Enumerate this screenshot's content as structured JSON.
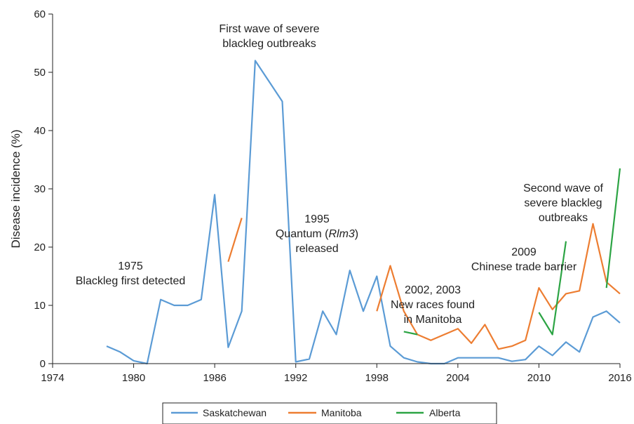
{
  "chart_data": {
    "type": "line",
    "xlabel": "",
    "ylabel": "Disease incidence (%)",
    "xlim": [
      1974,
      2016
    ],
    "ylim": [
      0,
      60
    ],
    "xticks": [
      "1974",
      "1980",
      "1986",
      "1992",
      "1998",
      "2004",
      "2010",
      "2016"
    ],
    "yticks": [
      "0",
      "10",
      "20",
      "30",
      "40",
      "50",
      "60"
    ],
    "grid": false,
    "legend_position": "bottom",
    "series": [
      {
        "name": "Saskatchewan",
        "color": "#5b9bd5",
        "segments": [
          [
            [
              1978,
              3
            ],
            [
              1979,
              2
            ],
            [
              1980,
              0.5
            ],
            [
              1981,
              0
            ],
            [
              1982,
              11
            ],
            [
              1983,
              10
            ],
            [
              1984,
              10
            ],
            [
              1985,
              11
            ],
            [
              1986,
              29
            ],
            [
              1987,
              2.8
            ],
            [
              1988,
              9
            ],
            [
              1989,
              52
            ],
            [
              1990,
              48.5
            ],
            [
              1991,
              45
            ],
            [
              1992,
              0.3
            ],
            [
              1993,
              0.8
            ],
            [
              1994,
              9
            ],
            [
              1995,
              5
            ],
            [
              1996,
              16
            ],
            [
              1997,
              9
            ],
            [
              1998,
              15
            ],
            [
              1999,
              3
            ],
            [
              2000,
              1
            ],
            [
              2001,
              0.3
            ],
            [
              2002,
              0
            ],
            [
              2003,
              0
            ],
            [
              2004,
              1
            ],
            [
              2005,
              1
            ],
            [
              2006,
              1
            ],
            [
              2007,
              1
            ],
            [
              2008,
              0.4
            ],
            [
              2009,
              0.7
            ],
            [
              2010,
              3
            ],
            [
              2011,
              1.4
            ],
            [
              2012,
              3.7
            ],
            [
              2013,
              2
            ],
            [
              2014,
              8
            ],
            [
              2015,
              9
            ],
            [
              2016,
              7
            ]
          ]
        ]
      },
      {
        "name": "Manitoba",
        "color": "#ed7d31",
        "segments": [
          [
            [
              1987,
              17.5
            ],
            [
              1988,
              25
            ]
          ],
          [
            [
              1998,
              9
            ],
            [
              1999,
              16.8
            ],
            [
              2000,
              9
            ],
            [
              2001,
              5
            ],
            [
              2002,
              4
            ],
            [
              2003,
              5
            ],
            [
              2004,
              6
            ],
            [
              2005,
              3.5
            ],
            [
              2006,
              6.7
            ],
            [
              2007,
              2.5
            ],
            [
              2008,
              3
            ],
            [
              2009,
              4
            ],
            [
              2010,
              13
            ],
            [
              2011,
              9.3
            ],
            [
              2012,
              12
            ],
            [
              2013,
              12.5
            ],
            [
              2014,
              24
            ],
            [
              2015,
              14
            ],
            [
              2016,
              12
            ]
          ]
        ]
      },
      {
        "name": "Alberta",
        "color": "#2ca444",
        "segments": [
          [
            [
              2000,
              5.5
            ],
            [
              2001,
              5
            ]
          ],
          [
            [
              2010,
              8.8
            ],
            [
              2011,
              5
            ],
            [
              2012,
              21
            ]
          ],
          [
            [
              2015,
              13
            ],
            [
              2016,
              33.5
            ]
          ]
        ]
      }
    ],
    "annotations": [
      {
        "id": "a1975",
        "lines": [
          "1975",
          "Blackleg first detected"
        ]
      },
      {
        "id": "afirst",
        "lines": [
          "First wave of severe",
          "blackleg outbreaks"
        ]
      },
      {
        "id": "a1995",
        "lines": [
          "1995",
          "Quantum (Rlm3)",
          "released"
        ]
      },
      {
        "id": "a2002",
        "lines": [
          "2002, 2003",
          "New races found",
          "in Manitoba"
        ]
      },
      {
        "id": "a2009",
        "lines": [
          "2009",
          "Chinese trade barrier"
        ]
      },
      {
        "id": "asecond",
        "lines": [
          "Second wave of",
          "severe blackleg",
          "outbreaks"
        ]
      }
    ]
  }
}
